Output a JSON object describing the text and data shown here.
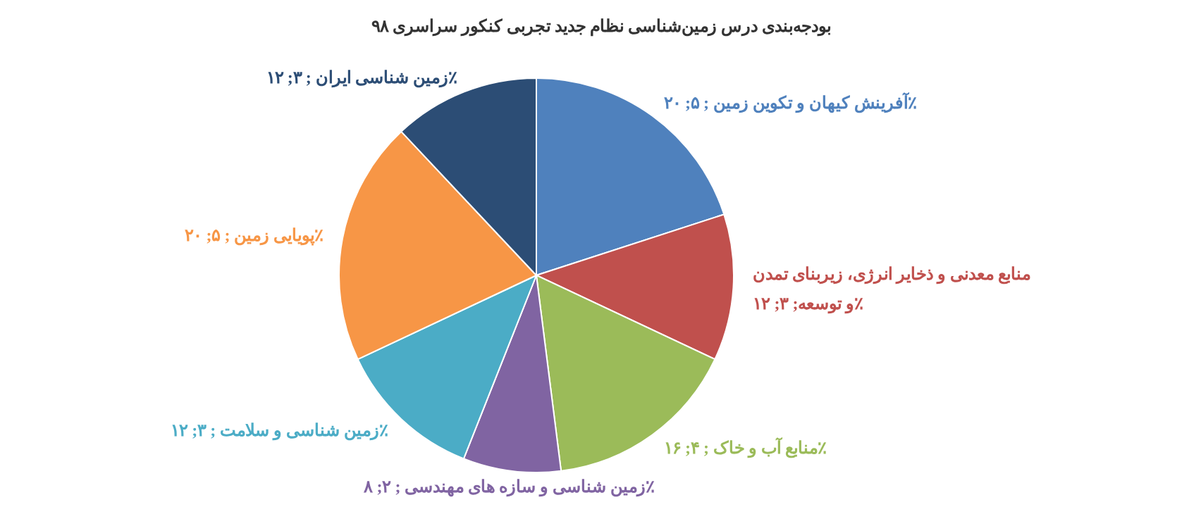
{
  "chart_data": {
    "type": "pie",
    "title": "بودجه‌بندی درس زمین‌شناسی نظام جدید تجربی کنکور سراسری ۹۸",
    "categories": [
      "آفرینش کیهان و تکوین زمین ; ۵; ۲۰٪",
      "منابع معدنی و ذخایر انرژی، زیربنای تمدن و توسعه; ۳; ۱۲٪",
      "منابع آب و خاک ; ۴; ۱۶٪",
      "زمین شناسی و سازه های مهندسی ; ۲; ۸٪",
      "زمین شناسی و سلامت ; ۳; ۱۲٪",
      "پویایی زمین ; ۵; ۲۰٪",
      "زمین شناسی ایران ; ۳; ۱۲٪"
    ],
    "values": [
      5,
      3,
      4,
      2,
      3,
      5,
      3
    ],
    "colors": [
      "#4f81bd",
      "#c0504d",
      "#9bbb59",
      "#8064a2",
      "#4bacc6",
      "#f79646",
      "#2c4d75"
    ]
  }
}
